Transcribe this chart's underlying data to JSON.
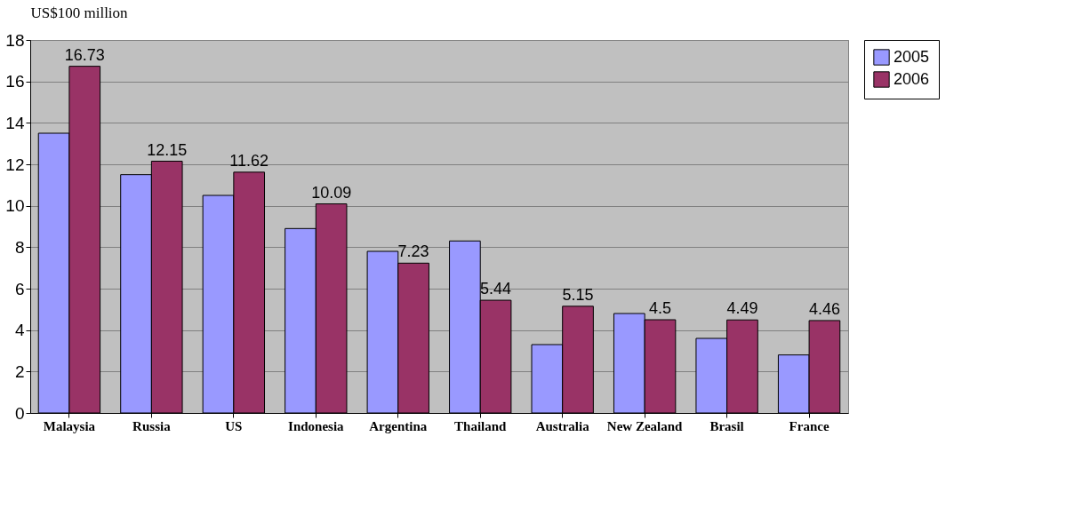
{
  "chart_data": {
    "type": "bar",
    "ylabel": "US$100 million",
    "categories": [
      "Malaysia",
      "Russia",
      "US",
      "Indonesia",
      "Argentina",
      "Thailand",
      "Australia",
      "New Zealand",
      "Brasil",
      "France"
    ],
    "series": [
      {
        "name": "2005",
        "color": "#9999ff",
        "values": [
          13.5,
          11.5,
          10.5,
          8.9,
          7.8,
          8.3,
          3.3,
          4.8,
          3.6,
          2.8
        ]
      },
      {
        "name": "2006",
        "color": "#993366",
        "values": [
          16.73,
          12.15,
          11.62,
          10.09,
          7.23,
          5.44,
          5.15,
          4.5,
          4.49,
          4.46
        ],
        "value_labels": [
          "16.73",
          "12.15",
          "11.62",
          "10.09",
          "7.23",
          "5.44",
          "5.15",
          "4.5",
          "4.49",
          "4.46"
        ]
      }
    ],
    "ylim": [
      0,
      18
    ],
    "yticks": [
      0,
      2,
      4,
      6,
      8,
      10,
      12,
      14,
      16,
      18
    ],
    "grid": "y",
    "legend": "right"
  }
}
